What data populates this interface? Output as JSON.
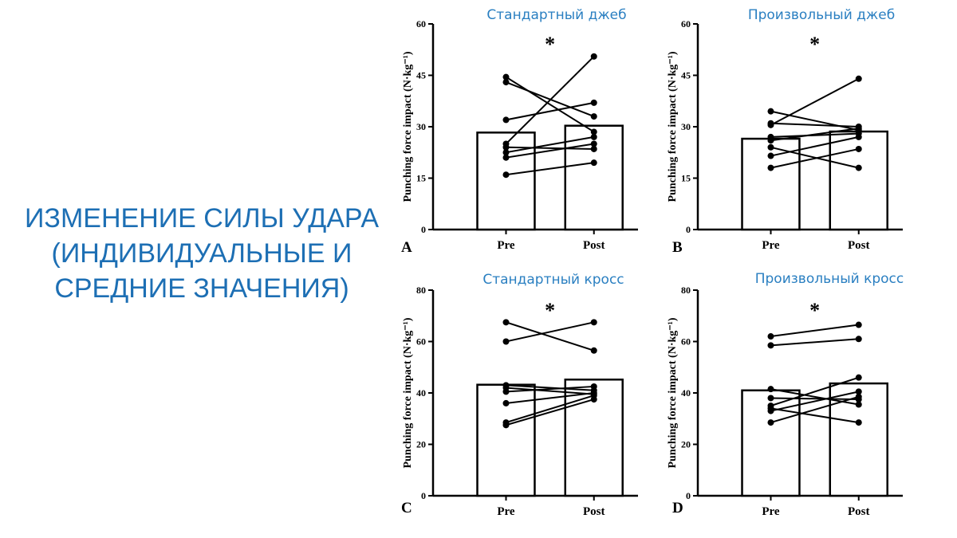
{
  "slide_title": [
    "ИЗМЕНЕНИЕ СИЛЫ УДАРА",
    "(ИНДИВИДУАЛЬНЫЕ И",
    "СРЕДНИЕ ЗНАЧЕНИЯ)"
  ],
  "chart_data": [
    {
      "type": "bar",
      "panel_letter": "A",
      "title": "Стандартный джеб",
      "ylabel": "Punching force impact (N·kg⁻¹)",
      "categories": [
        "Pre",
        "Post"
      ],
      "values": [
        28.3,
        30.3
      ],
      "ylim": [
        0,
        60
      ],
      "yticks": [
        0,
        15,
        30,
        45,
        60
      ],
      "significance": "*",
      "individual": [
        [
          44.5,
          28.5
        ],
        [
          43.0,
          33.0
        ],
        [
          32.0,
          37.0
        ],
        [
          25.0,
          50.5
        ],
        [
          24.0,
          23.5
        ],
        [
          22.5,
          27.0
        ],
        [
          21.0,
          25.0
        ],
        [
          16.0,
          19.5
        ]
      ]
    },
    {
      "type": "bar",
      "panel_letter": "B",
      "title": "Произвольный джеб",
      "ylabel": "Punching force impact (N·kg⁻¹)",
      "categories": [
        "Pre",
        "Post"
      ],
      "values": [
        26.5,
        28.6
      ],
      "ylim": [
        0,
        60
      ],
      "yticks": [
        0,
        15,
        30,
        45,
        60
      ],
      "significance": "*",
      "individual": [
        [
          34.5,
          29.0
        ],
        [
          31.0,
          30.0
        ],
        [
          30.5,
          44.0
        ],
        [
          27.0,
          28.0
        ],
        [
          26.0,
          29.5
        ],
        [
          24.0,
          18.0
        ],
        [
          21.5,
          27.0
        ],
        [
          18.0,
          23.5
        ]
      ]
    },
    {
      "type": "bar",
      "panel_letter": "C",
      "title": "Стандартный кросс",
      "ylabel": "Punching force impact (N·kg⁻¹)",
      "categories": [
        "Pre",
        "Post"
      ],
      "values": [
        43.2,
        45.2
      ],
      "ylim": [
        0,
        80
      ],
      "yticks": [
        0,
        20,
        40,
        60,
        80
      ],
      "significance": "*",
      "individual": [
        [
          67.5,
          56.5
        ],
        [
          60.0,
          67.5
        ],
        [
          43.0,
          41.0
        ],
        [
          42.0,
          39.5
        ],
        [
          40.5,
          42.5
        ],
        [
          36.0,
          40.0
        ],
        [
          28.5,
          39.0
        ],
        [
          27.5,
          37.5
        ]
      ]
    },
    {
      "type": "bar",
      "panel_letter": "D",
      "title": "Произвольный кросс",
      "ylabel": "Punching force impact (N·kg⁻¹)",
      "categories": [
        "Pre",
        "Post"
      ],
      "values": [
        41.0,
        43.7
      ],
      "ylim": [
        0,
        80
      ],
      "yticks": [
        0,
        20,
        40,
        60,
        80
      ],
      "significance": "*",
      "individual": [
        [
          62.0,
          66.5
        ],
        [
          58.5,
          61.0
        ],
        [
          41.5,
          35.5
        ],
        [
          38.0,
          37.5
        ],
        [
          35.0,
          46.0
        ],
        [
          34.0,
          28.5
        ],
        [
          33.0,
          40.5
        ],
        [
          28.5,
          38.5
        ]
      ]
    }
  ]
}
